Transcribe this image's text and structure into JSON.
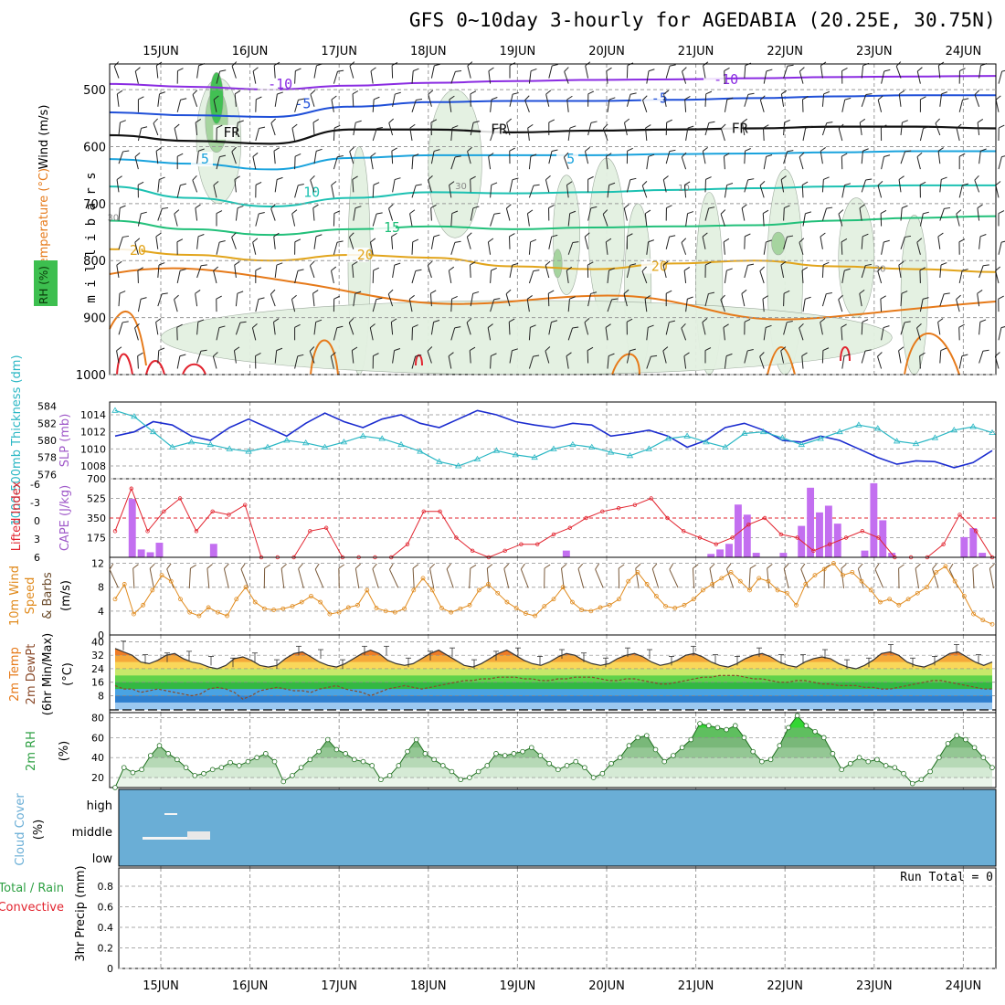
{
  "title": "GFS 0~10day 3-hourly for AGEDABIA (20.25E, 30.75N)",
  "colors": {
    "rh_light": "#e3f1e1",
    "rh_mid": "#a3d39c",
    "rh_dark": "#3dbf4f",
    "temp_purple": "#8a2be2",
    "temp_blue": "#1f4fd8",
    "temp_cyan": "#1aa3dd",
    "temp_teal": "#1cc1b2",
    "temp_green": "#22c07a",
    "temp_gold": "#e2a51c",
    "temp_orange": "#e67a1a",
    "temp_red": "#e2242f",
    "slp": "#1b2ccf",
    "thickness": "#2ab7c4",
    "cape": "#c36ff0",
    "li": "#e2242f",
    "wind10": "#e08a1c",
    "cloud": "#6aaed6",
    "rh2m": "#2ea043"
  },
  "chart_data": {
    "type": "meteogram",
    "x_dates": [
      "15JUN",
      "16JUN",
      "17JUN",
      "18JUN",
      "19JUN",
      "20JUN",
      "21JUN",
      "22JUN",
      "23JUN",
      "24JUN"
    ],
    "panels": [
      {
        "id": "upper-air",
        "ylabel_parts": [
          "RH (%)",
          "Temperature (°C)",
          "Wind (m/s)"
        ],
        "yaxis_name": "m i l l i b a r s",
        "yticks": [
          500,
          600,
          700,
          800,
          900,
          1000
        ],
        "isotherms": [
          {
            "label": "-10",
            "values_mb": [
              490,
              495,
              500,
              493,
              488,
              485,
              483,
              482,
              480,
              478,
              477,
              476
            ]
          },
          {
            "label": "-5",
            "values_mb": [
              540,
              545,
              548,
              530,
              522,
              520,
              520,
              518,
              515,
              512,
              510,
              510
            ]
          },
          {
            "label": "FR",
            "values_mb": [
              580,
              590,
              595,
              570,
              570,
              575,
              572,
              570,
              568,
              565,
              565,
              568
            ]
          },
          {
            "label": "5",
            "values_mb": [
              622,
              630,
              640,
              620,
              615,
              615,
              615,
              613,
              612,
              610,
              608,
              608
            ]
          },
          {
            "label": "10",
            "values_mb": [
              670,
              690,
              705,
              690,
              680,
              682,
              680,
              676,
              673,
              670,
              668,
              668
            ]
          },
          {
            "label": "15",
            "values_mb": [
              730,
              745,
              755,
              745,
              740,
              745,
              742,
              740,
              738,
              730,
              725,
              722
            ]
          },
          {
            "label": "20",
            "values_mb": [
              780,
              790,
              800,
              790,
              795,
              810,
              815,
              805,
              800,
              810,
              815,
              820
            ]
          }
        ],
        "isotherm_labels": [
          {
            "text": "-10",
            "x_day": 2.2,
            "mb": 490
          },
          {
            "text": "-10",
            "x_day": 7.2,
            "mb": 482
          },
          {
            "text": "-5",
            "x_day": 2.5,
            "mb": 525
          },
          {
            "text": "-5",
            "x_day": 6.5,
            "mb": 515
          },
          {
            "text": "FR",
            "x_day": 1.7,
            "mb": 575
          },
          {
            "text": "FR",
            "x_day": 4.7,
            "mb": 570
          },
          {
            "text": "FR",
            "x_day": 7.4,
            "mb": 568
          },
          {
            "text": "5",
            "x_day": 1.45,
            "mb": 622
          },
          {
            "text": "5",
            "x_day": 5.55,
            "mb": 622
          },
          {
            "text": "10",
            "x_day": 2.6,
            "mb": 680
          },
          {
            "text": "15",
            "x_day": 3.5,
            "mb": 742
          },
          {
            "text": "20",
            "x_day": 0.65,
            "mb": 782
          },
          {
            "text": "20",
            "x_day": 3.2,
            "mb": 790
          },
          {
            "text": "20",
            "x_day": 6.5,
            "mb": 810
          }
        ],
        "rh_labels": [
          {
            "text": "30",
            "x_day": 0.4,
            "mb": 730
          },
          {
            "text": "30",
            "x_day": 4.3,
            "mb": 675
          },
          {
            "text": "10",
            "x_day": 6.8,
            "mb": 678
          },
          {
            "text": "30",
            "x_day": 9.0,
            "mb": 820
          }
        ]
      },
      {
        "id": "slp-thickness",
        "ylabel_left": "1000-500mb Thickness (dm)",
        "ylabel_right": "SLP (mb)",
        "yticks_left": [
          576,
          578,
          580,
          582,
          584
        ],
        "yticks_right": [
          1008,
          1010,
          1012,
          1014
        ],
        "slp": [
          1011.5,
          1012,
          1013.2,
          1012.8,
          1011.5,
          1011,
          1012.5,
          1013.5,
          1012.5,
          1011.5,
          1013,
          1014.2,
          1013.2,
          1012.5,
          1013.5,
          1014,
          1013,
          1012.5,
          1013.5,
          1014.5,
          1014,
          1013.2,
          1012.8,
          1012.5,
          1013,
          1012.8,
          1011.5,
          1011.8,
          1012.2,
          1011.5,
          1010.2,
          1011,
          1012.5,
          1013,
          1012.2,
          1011,
          1010.8,
          1011.5,
          1011,
          1010,
          1009,
          1008.2,
          1008.6,
          1008.5,
          1007.8,
          1008.4,
          1009.8
        ],
        "thickness": [
          583.5,
          582.8,
          581,
          579.2,
          579.8,
          579.5,
          579,
          578.7,
          579.2,
          580,
          579.7,
          579.2,
          579.8,
          580.5,
          580.2,
          579.5,
          578.7,
          577.5,
          577,
          577.8,
          578.8,
          578.3,
          578,
          579,
          579.5,
          579.2,
          578.6,
          578.2,
          579,
          580.2,
          580.5,
          579.8,
          579.2,
          580.8,
          581,
          580.3,
          579.5,
          580.2,
          581,
          581.8,
          581.4,
          579.9,
          579.6,
          580.3,
          581.2,
          581.6,
          580.9
        ]
      },
      {
        "id": "cape-li",
        "ylabel_left": "Lifted Index",
        "ylabel_right": "CAPE (J/kg)",
        "yticks_left": [
          "-6",
          "-3",
          "0",
          "3",
          "6"
        ],
        "yticks_right": [
          175,
          350,
          525,
          700
        ],
        "li": [
          2,
          -4.5,
          2,
          -1,
          -3,
          2,
          -1,
          -0.5,
          -2,
          6,
          6,
          6,
          2,
          1.5,
          6,
          6,
          6,
          6,
          4,
          -1,
          -1,
          3,
          5,
          6,
          5,
          4,
          4,
          2.5,
          1.5,
          0,
          -1,
          -1.5,
          -2,
          -3,
          0,
          2,
          3,
          4,
          3,
          1,
          0,
          2.5,
          3,
          5,
          4,
          3,
          2,
          3,
          6,
          6,
          6,
          4,
          -0.5,
          2,
          6
        ],
        "cape": [
          0,
          0,
          520,
          70,
          45,
          130,
          0,
          0,
          0,
          0,
          0,
          120,
          0,
          0,
          0,
          0,
          0,
          0,
          0,
          0,
          0,
          0,
          0,
          0,
          0,
          0,
          0,
          0,
          0,
          0,
          0,
          0,
          0,
          0,
          0,
          0,
          0,
          0,
          0,
          0,
          0,
          0,
          0,
          0,
          0,
          0,
          0,
          0,
          0,
          0,
          60,
          0,
          0,
          0,
          0,
          0,
          0,
          0,
          0,
          0,
          0,
          0,
          0,
          0,
          0,
          0,
          30,
          70,
          120,
          470,
          380,
          40,
          0,
          0,
          40,
          0,
          280,
          620,
          400,
          460,
          300,
          0,
          0,
          60,
          660,
          330,
          40,
          0,
          0,
          0,
          0,
          0,
          0,
          0,
          180,
          260,
          40,
          0
        ]
      },
      {
        "id": "wind10m",
        "ylabel": "10m Wind Speed & Barbs (m/s)",
        "yticks": [
          0,
          4,
          8,
          12
        ],
        "speed": [
          6,
          8.5,
          3.5,
          5,
          7.5,
          10,
          9,
          6,
          3.8,
          3.2,
          4.6,
          3.8,
          3.2,
          6,
          8,
          5.5,
          4.4,
          4.2,
          4.4,
          4.8,
          5.5,
          6.5,
          5.5,
          3.5,
          3.8,
          4.6,
          5,
          7.5,
          4.5,
          4,
          3.8,
          4.4,
          7.5,
          9.5,
          7.5,
          4.5,
          3.8,
          4.4,
          5,
          7.5,
          8.5,
          7,
          5.5,
          4.5,
          3.6,
          3.2,
          4.8,
          6,
          8,
          5.5,
          4.2,
          4,
          4.6,
          5,
          6,
          9,
          10.5,
          8.5,
          6.5,
          4.8,
          4.5,
          5,
          6,
          7.5,
          8.5,
          9.5,
          10.5,
          9,
          7.5,
          9.5,
          9,
          7.5,
          7,
          5,
          8.5,
          10,
          11,
          12,
          10,
          10.5,
          9,
          7.5,
          5.5,
          6,
          5,
          6,
          7,
          8,
          10.5,
          11.5,
          9,
          6.5,
          3.5,
          2.5,
          1.8
        ]
      },
      {
        "id": "temp2m",
        "ylabel": "2m Temp 2m DewPt (6hr Min/Max) (°C)",
        "yticks": [
          8,
          16,
          24,
          32,
          40
        ],
        "temp": [
          36,
          34,
          32,
          28,
          27,
          29,
          32,
          33,
          30,
          28,
          27,
          25,
          24,
          26,
          30,
          31,
          29,
          26,
          25,
          26,
          30,
          33,
          34,
          31,
          28,
          26,
          25,
          27,
          30,
          33,
          35,
          33,
          29,
          27,
          26,
          27,
          30,
          33,
          35,
          32,
          29,
          26,
          25,
          27,
          30,
          33,
          35,
          32,
          29,
          27,
          26,
          28,
          31,
          33,
          32,
          29,
          27,
          26,
          27,
          30,
          32,
          33,
          31,
          28,
          26,
          27,
          29,
          32,
          33,
          31,
          28,
          26,
          25,
          27,
          30,
          32,
          33,
          31,
          28,
          26,
          25,
          28,
          30,
          31,
          30,
          27,
          25,
          24,
          26,
          29,
          33,
          34,
          32,
          28,
          26,
          25,
          27,
          30,
          33,
          34,
          31,
          28,
          26,
          28
        ],
        "dewpoint": [
          14,
          12,
          12,
          10,
          11,
          12,
          11,
          10,
          9,
          8,
          9,
          12,
          13,
          12,
          10,
          6,
          8,
          11,
          12,
          13,
          12,
          11,
          11,
          10,
          12,
          13,
          14,
          12,
          11,
          10,
          8,
          10,
          12,
          13,
          14,
          13,
          12,
          13,
          14,
          15,
          16,
          17,
          17,
          18,
          18,
          19,
          19,
          19,
          18,
          18,
          17,
          17,
          18,
          18,
          19,
          19,
          19,
          18,
          17,
          17,
          18,
          18,
          17,
          16,
          15,
          15,
          16,
          17,
          18,
          19,
          19,
          20,
          20,
          20,
          19,
          18,
          18,
          17,
          16,
          16,
          17,
          17,
          16,
          15,
          15,
          14,
          14,
          14,
          13,
          13,
          12,
          12,
          13,
          14,
          15,
          16,
          17,
          17,
          16,
          15,
          14,
          13,
          12,
          12
        ]
      },
      {
        "id": "rh2m",
        "ylabel": "2m RH (%)",
        "yticks": [
          20,
          40,
          60,
          80
        ],
        "rh": [
          10,
          30,
          25,
          28,
          42,
          52,
          44,
          38,
          30,
          22,
          24,
          28,
          30,
          35,
          32,
          36,
          40,
          44,
          36,
          16,
          22,
          30,
          38,
          46,
          58,
          48,
          44,
          38,
          36,
          32,
          18,
          22,
          32,
          46,
          58,
          44,
          38,
          32,
          26,
          18,
          20,
          26,
          32,
          44,
          42,
          44,
          46,
          50,
          42,
          34,
          28,
          32,
          36,
          30,
          20,
          24,
          34,
          40,
          52,
          60,
          62,
          48,
          36,
          42,
          50,
          58,
          74,
          72,
          70,
          68,
          72,
          60,
          46,
          36,
          38,
          52,
          70,
          82,
          72,
          66,
          60,
          44,
          28,
          34,
          40,
          36,
          38,
          32,
          30,
          24,
          14,
          18,
          26,
          40,
          54,
          62,
          58,
          50,
          40,
          30
        ],
        "ylim": [
          10,
          85
        ]
      },
      {
        "id": "cloud",
        "ylabel": "Cloud Cover (%)",
        "levels": [
          "high",
          "middle",
          "low"
        ]
      },
      {
        "id": "precip",
        "ylabel_parts": [
          "Total / Rain",
          "Convective",
          "3hr Precip (mm)"
        ],
        "yticks": [
          "0",
          "0.2",
          "0.4",
          "0.6",
          "0.8"
        ],
        "run_total": "Run Total = 0",
        "values": []
      }
    ]
  }
}
